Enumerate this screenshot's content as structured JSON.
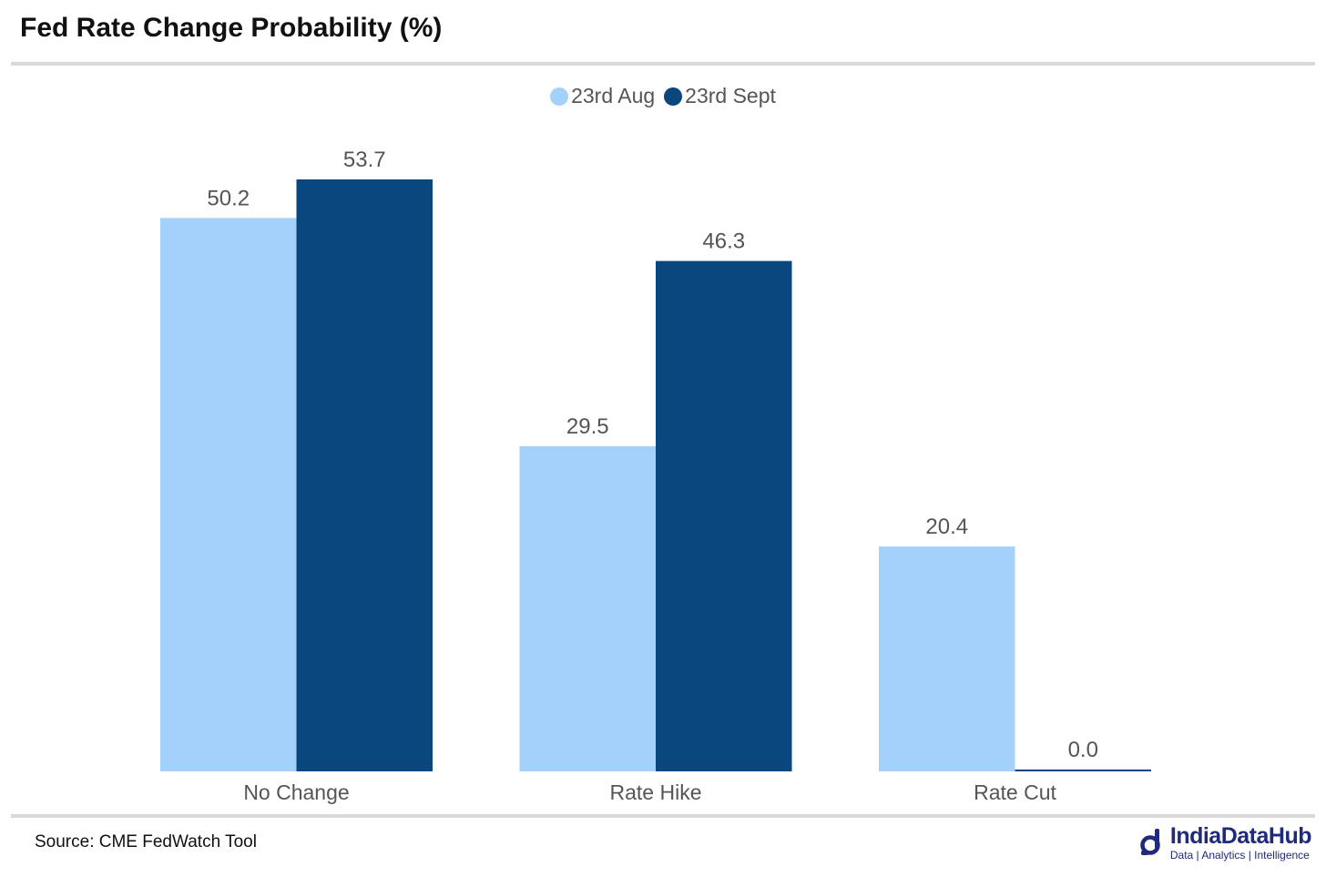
{
  "title": "Fed Rate Change Probability (%)",
  "source": "Source: CME FedWatch Tool",
  "brand": {
    "name": "IndiaDataHub",
    "tagline": "Data | Analytics | Intelligence",
    "color": "#1f2a7a"
  },
  "colors": {
    "series1": "#a3d1fb",
    "series2": "#0b477f",
    "rule": "#d9d9d9",
    "label": "#555555"
  },
  "chart_data": {
    "type": "bar",
    "title": "Fed Rate Change Probability (%)",
    "categories": [
      "No Change",
      "Rate Hike",
      "Rate Cut"
    ],
    "series": [
      {
        "name": "23rd Aug",
        "values": [
          50.2,
          29.5,
          20.4
        ],
        "labels": [
          "50.2",
          "29.5",
          "20.4"
        ]
      },
      {
        "name": "23rd Sept",
        "values": [
          53.7,
          46.3,
          0.0
        ],
        "labels": [
          "53.7",
          "46.3",
          "0.0"
        ]
      }
    ],
    "xlabel": "",
    "ylabel": "",
    "ylim": [
      0,
      53.7
    ],
    "grid": false,
    "legend": "top-center"
  }
}
